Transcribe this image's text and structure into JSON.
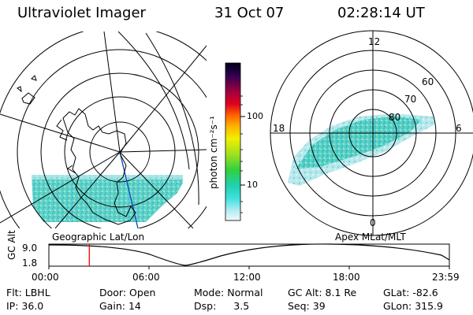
{
  "header": {
    "title": "Ultraviolet Imager",
    "date": "31 Oct 07",
    "time": "02:28:14 UT"
  },
  "colorbar": {
    "label": "photon cm⁻²s⁻¹",
    "ticks": [
      "100",
      "10"
    ]
  },
  "left_panel": {
    "caption": "Geographic Lat/Lon"
  },
  "right_panel": {
    "caption": "Apex  MLat/MLT",
    "mlt_labels": [
      "12",
      "18",
      "6",
      "0"
    ],
    "lat_labels": [
      "60",
      "70",
      "80"
    ]
  },
  "timeline": {
    "ylabel": "GC Alt",
    "yticks": [
      "9.0",
      "1.8"
    ],
    "xticks": [
      "00:00",
      "06:00",
      "12:00",
      "18:00",
      "23:59"
    ],
    "marker_fraction": 0.101
  },
  "info": {
    "row1": [
      {
        "label": "Flt:",
        "value": "LBHL"
      },
      {
        "label": "Door:",
        "value": "Open"
      },
      {
        "label": "Mode:",
        "value": "Normal"
      },
      {
        "label": "GC Alt:",
        "value": "8.1 Re"
      },
      {
        "label": "GLat:",
        "value": "-82.6"
      }
    ],
    "row2": [
      {
        "label": "IP:",
        "value": "36.0"
      },
      {
        "label": "Gain:",
        "value": "14"
      },
      {
        "label": "Dsp:",
        "value": "3.5"
      },
      {
        "label": "Seq:",
        "value": "39"
      },
      {
        "label": "GLon:",
        "value": "315.9"
      }
    ]
  },
  "colors": {
    "aurora_main": "#40d8d0",
    "aurora_faint": "#c8eef0",
    "marker": "#ff0000"
  }
}
